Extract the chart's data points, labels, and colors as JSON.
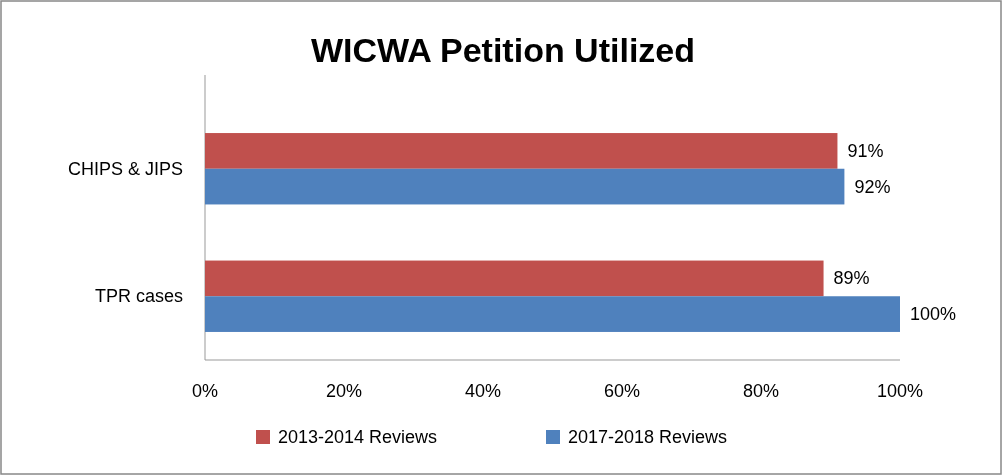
{
  "chart_data": {
    "type": "bar",
    "title": "WICWA Petition Utilized",
    "orientation": "horizontal",
    "categories": [
      "CHIPS & JIPS",
      "TPR cases"
    ],
    "series": [
      {
        "name": "2013-2014 Reviews",
        "color": "#c0504d",
        "values": [
          91,
          89
        ],
        "value_labels": [
          "91%",
          "89%"
        ]
      },
      {
        "name": "2017-2018 Reviews",
        "color": "#4f81bd",
        "values": [
          92,
          100
        ],
        "value_labels": [
          "92%",
          "100%"
        ]
      }
    ],
    "xlim": [
      0,
      100
    ],
    "xticks": [
      {
        "value": 0,
        "label": "0%"
      },
      {
        "value": 20,
        "label": "20%"
      },
      {
        "value": 40,
        "label": "40%"
      },
      {
        "value": 60,
        "label": "60%"
      },
      {
        "value": 80,
        "label": "80%"
      },
      {
        "value": 100,
        "label": "100%"
      }
    ],
    "grid": false,
    "legend": "bottom"
  }
}
